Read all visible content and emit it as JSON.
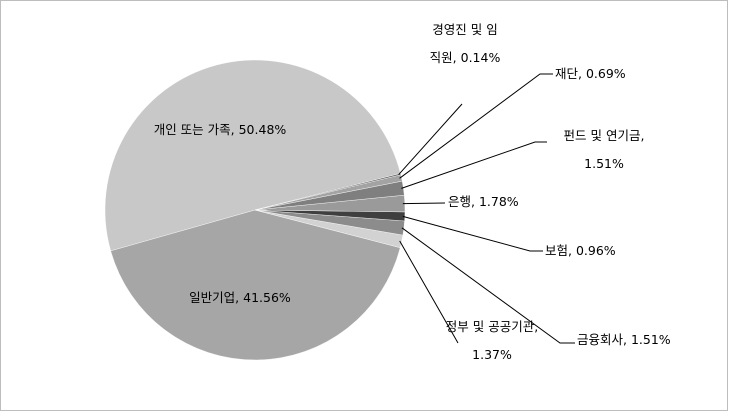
{
  "chart_data": {
    "type": "pie",
    "categories": [
      "개인 또는 가족,",
      "일반기업,",
      "정부 및 공공기관,",
      "금융회사,",
      "보험,",
      "은행,",
      "펀드 및 연기금,",
      "재단,",
      "경영진 및 임직원,"
    ],
    "values": [
      50.48,
      41.56,
      1.37,
      1.51,
      0.96,
      1.78,
      1.51,
      0.69,
      0.14
    ],
    "value_labels": [
      "50.48%",
      "41.56%",
      "1.37%",
      "1.51%",
      "0.96%",
      "1.78%",
      "1.51%",
      "0.69%",
      "0.14%"
    ],
    "colors": [
      "#c8c8c8",
      "#a6a6a6",
      "#d2d2d2",
      "#8c8c8c",
      "#3f3f3f",
      "#9a9a9a",
      "#7f7f7f",
      "#a3a3a3",
      "#595959"
    ]
  }
}
